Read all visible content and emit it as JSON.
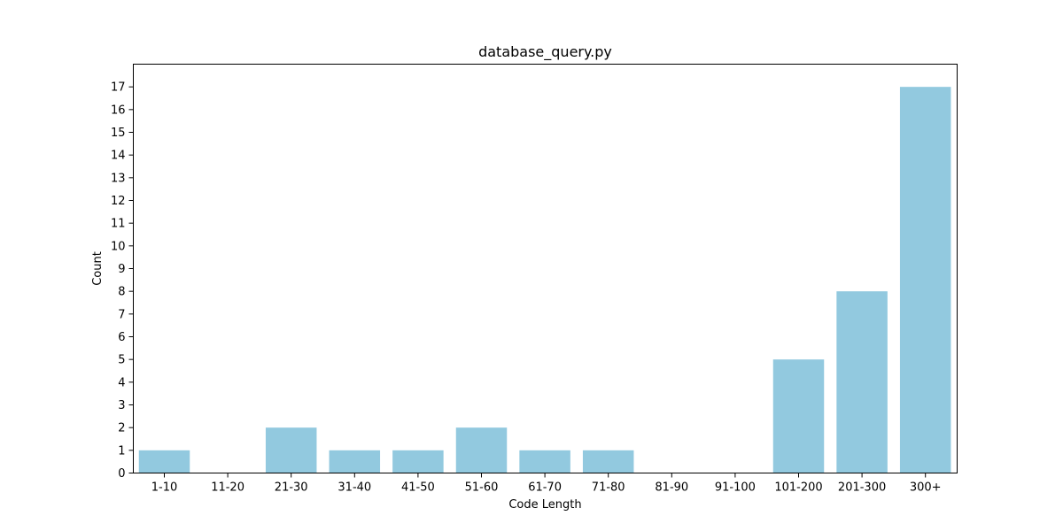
{
  "chart_data": {
    "type": "bar",
    "title": "database_query.py",
    "xlabel": "Code Length",
    "ylabel": "Count",
    "categories": [
      "1-10",
      "11-20",
      "21-30",
      "31-40",
      "41-50",
      "51-60",
      "61-70",
      "71-80",
      "81-90",
      "91-100",
      "101-200",
      "201-300",
      "300+"
    ],
    "values": [
      1,
      0,
      2,
      1,
      1,
      2,
      1,
      1,
      0,
      0,
      5,
      8,
      17
    ],
    "ylim": [
      0,
      18
    ],
    "yticks": [
      0,
      1,
      2,
      3,
      4,
      5,
      6,
      7,
      8,
      9,
      10,
      11,
      12,
      13,
      14,
      15,
      16,
      17
    ],
    "bar_color": "#92c9df",
    "grid": false,
    "legend": "none"
  }
}
